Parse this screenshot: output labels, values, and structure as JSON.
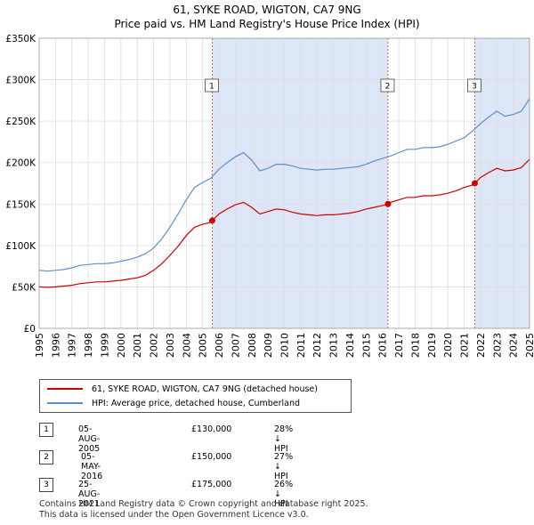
{
  "title": "61, SYKE ROAD, WIGTON, CA7 9NG",
  "subtitle": "Price paid vs. HM Land Registry's House Price Index (HPI)",
  "colors": {
    "price_paid": "#cc0000",
    "hpi": "#5b8fd0",
    "shade": "#dde6f7",
    "grid": "#dddddd"
  },
  "legend": {
    "price_paid_label": "61, SYKE ROAD, WIGTON, CA7 9NG (detached house)",
    "hpi_label": "HPI: Average price, detached house, Cumberland"
  },
  "sales": [
    {
      "num": "1",
      "date": "05-AUG-2005",
      "price": "£130,000",
      "hpi_diff": "28% ↓ HPI"
    },
    {
      "num": "2",
      "date": "05-MAY-2016",
      "price": "£150,000",
      "hpi_diff": "27% ↓ HPI"
    },
    {
      "num": "3",
      "date": "25-AUG-2021",
      "price": "£175,000",
      "hpi_diff": "26% ↓ HPI"
    }
  ],
  "footer": {
    "line1": "Contains HM Land Registry data © Crown copyright and database right 2025.",
    "line2": "This data is licensed under the Open Government Licence v3.0."
  },
  "chart_data": {
    "type": "line",
    "title": "61, SYKE ROAD, WIGTON, CA7 9NG",
    "subtitle": "Price paid vs. HM Land Registry's House Price Index (HPI)",
    "xlim": [
      1995,
      2025
    ],
    "ylim": [
      0,
      350000
    ],
    "yticks": [
      0,
      50000,
      100000,
      150000,
      200000,
      250000,
      300000,
      350000
    ],
    "ytick_labels": [
      "£0",
      "£50K",
      "£100K",
      "£150K",
      "£200K",
      "£250K",
      "£300K",
      "£350K"
    ],
    "xticks": [
      1995,
      1996,
      1997,
      1998,
      1999,
      2000,
      2001,
      2002,
      2003,
      2004,
      2005,
      2006,
      2007,
      2008,
      2009,
      2010,
      2011,
      2012,
      2013,
      2014,
      2015,
      2016,
      2017,
      2018,
      2019,
      2020,
      2021,
      2022,
      2023,
      2024,
      2025
    ],
    "grid": true,
    "shaded_ranges": [
      [
        2005.59,
        2016.34
      ],
      [
        2021.65,
        2025
      ]
    ],
    "series": [
      {
        "name": "HPI: Average price, detached house, Cumberland",
        "x": [
          1995,
          1995.5,
          1996,
          1996.5,
          1997,
          1997.5,
          1998,
          1998.5,
          1999,
          1999.5,
          2000,
          2000.5,
          2001,
          2001.5,
          2002,
          2002.5,
          2003,
          2003.5,
          2004,
          2004.5,
          2005,
          2005.5,
          2006,
          2006.5,
          2007,
          2007.5,
          2008,
          2008.5,
          2009,
          2009.5,
          2010,
          2010.5,
          2011,
          2011.5,
          2012,
          2012.5,
          2013,
          2013.5,
          2014,
          2014.5,
          2015,
          2015.5,
          2016,
          2016.5,
          2017,
          2017.5,
          2018,
          2018.5,
          2019,
          2019.5,
          2020,
          2020.5,
          2021,
          2021.5,
          2022,
          2022.5,
          2023,
          2023.5,
          2024,
          2024.5,
          2025
        ],
        "values": [
          70000,
          69000,
          70000,
          71000,
          73000,
          76000,
          77000,
          78000,
          78000,
          79000,
          81000,
          83000,
          86000,
          90000,
          97000,
          108000,
          122000,
          138000,
          155000,
          170000,
          176000,
          181000,
          192000,
          200000,
          207000,
          212000,
          203000,
          190000,
          193000,
          198000,
          198000,
          196000,
          193000,
          192000,
          191000,
          192000,
          192000,
          193000,
          194000,
          195000,
          198000,
          202000,
          205000,
          208000,
          212000,
          216000,
          216000,
          218000,
          218000,
          219000,
          222000,
          226000,
          230000,
          238000,
          247000,
          255000,
          262000,
          256000,
          258000,
          262000,
          277000
        ]
      },
      {
        "name": "61, SYKE ROAD, WIGTON, CA7 9NG (detached house)",
        "x": [
          1995,
          1995.5,
          1996,
          1996.5,
          1997,
          1997.5,
          1998,
          1998.5,
          1999,
          1999.5,
          2000,
          2000.5,
          2001,
          2001.5,
          2002,
          2002.5,
          2003,
          2003.5,
          2004,
          2004.5,
          2005,
          2005.5,
          2005.59,
          2006,
          2006.5,
          2007,
          2007.5,
          2008,
          2008.5,
          2009,
          2009.5,
          2010,
          2010.5,
          2011,
          2011.5,
          2012,
          2012.5,
          2013,
          2013.5,
          2014,
          2014.5,
          2015,
          2015.5,
          2016,
          2016.34,
          2016.5,
          2017,
          2017.5,
          2018,
          2018.5,
          2019,
          2019.5,
          2020,
          2020.5,
          2021,
          2021.5,
          2021.65,
          2022,
          2022.5,
          2023,
          2023.5,
          2024,
          2024.5,
          2025
        ],
        "values": [
          50000,
          49500,
          50000,
          51000,
          52000,
          54000,
          55000,
          56000,
          56000,
          57000,
          58000,
          59500,
          61000,
          64000,
          70000,
          78000,
          88000,
          99000,
          112000,
          122000,
          125500,
          128000,
          130000,
          138000,
          144000,
          149000,
          152000,
          146000,
          138000,
          141000,
          144000,
          143000,
          140000,
          138000,
          137000,
          136000,
          137000,
          137000,
          138000,
          139000,
          141000,
          144000,
          146000,
          148000,
          150000,
          152000,
          155000,
          158000,
          158000,
          160000,
          160000,
          161000,
          163000,
          166000,
          170000,
          173000,
          175000,
          182000,
          188000,
          193000,
          190000,
          191000,
          194000,
          204000
        ]
      }
    ],
    "sale_markers": [
      {
        "label": "1",
        "x": 2005.59,
        "y": 130000
      },
      {
        "label": "2",
        "x": 2016.34,
        "y": 150000
      },
      {
        "label": "3",
        "x": 2021.65,
        "y": 175000
      }
    ]
  }
}
